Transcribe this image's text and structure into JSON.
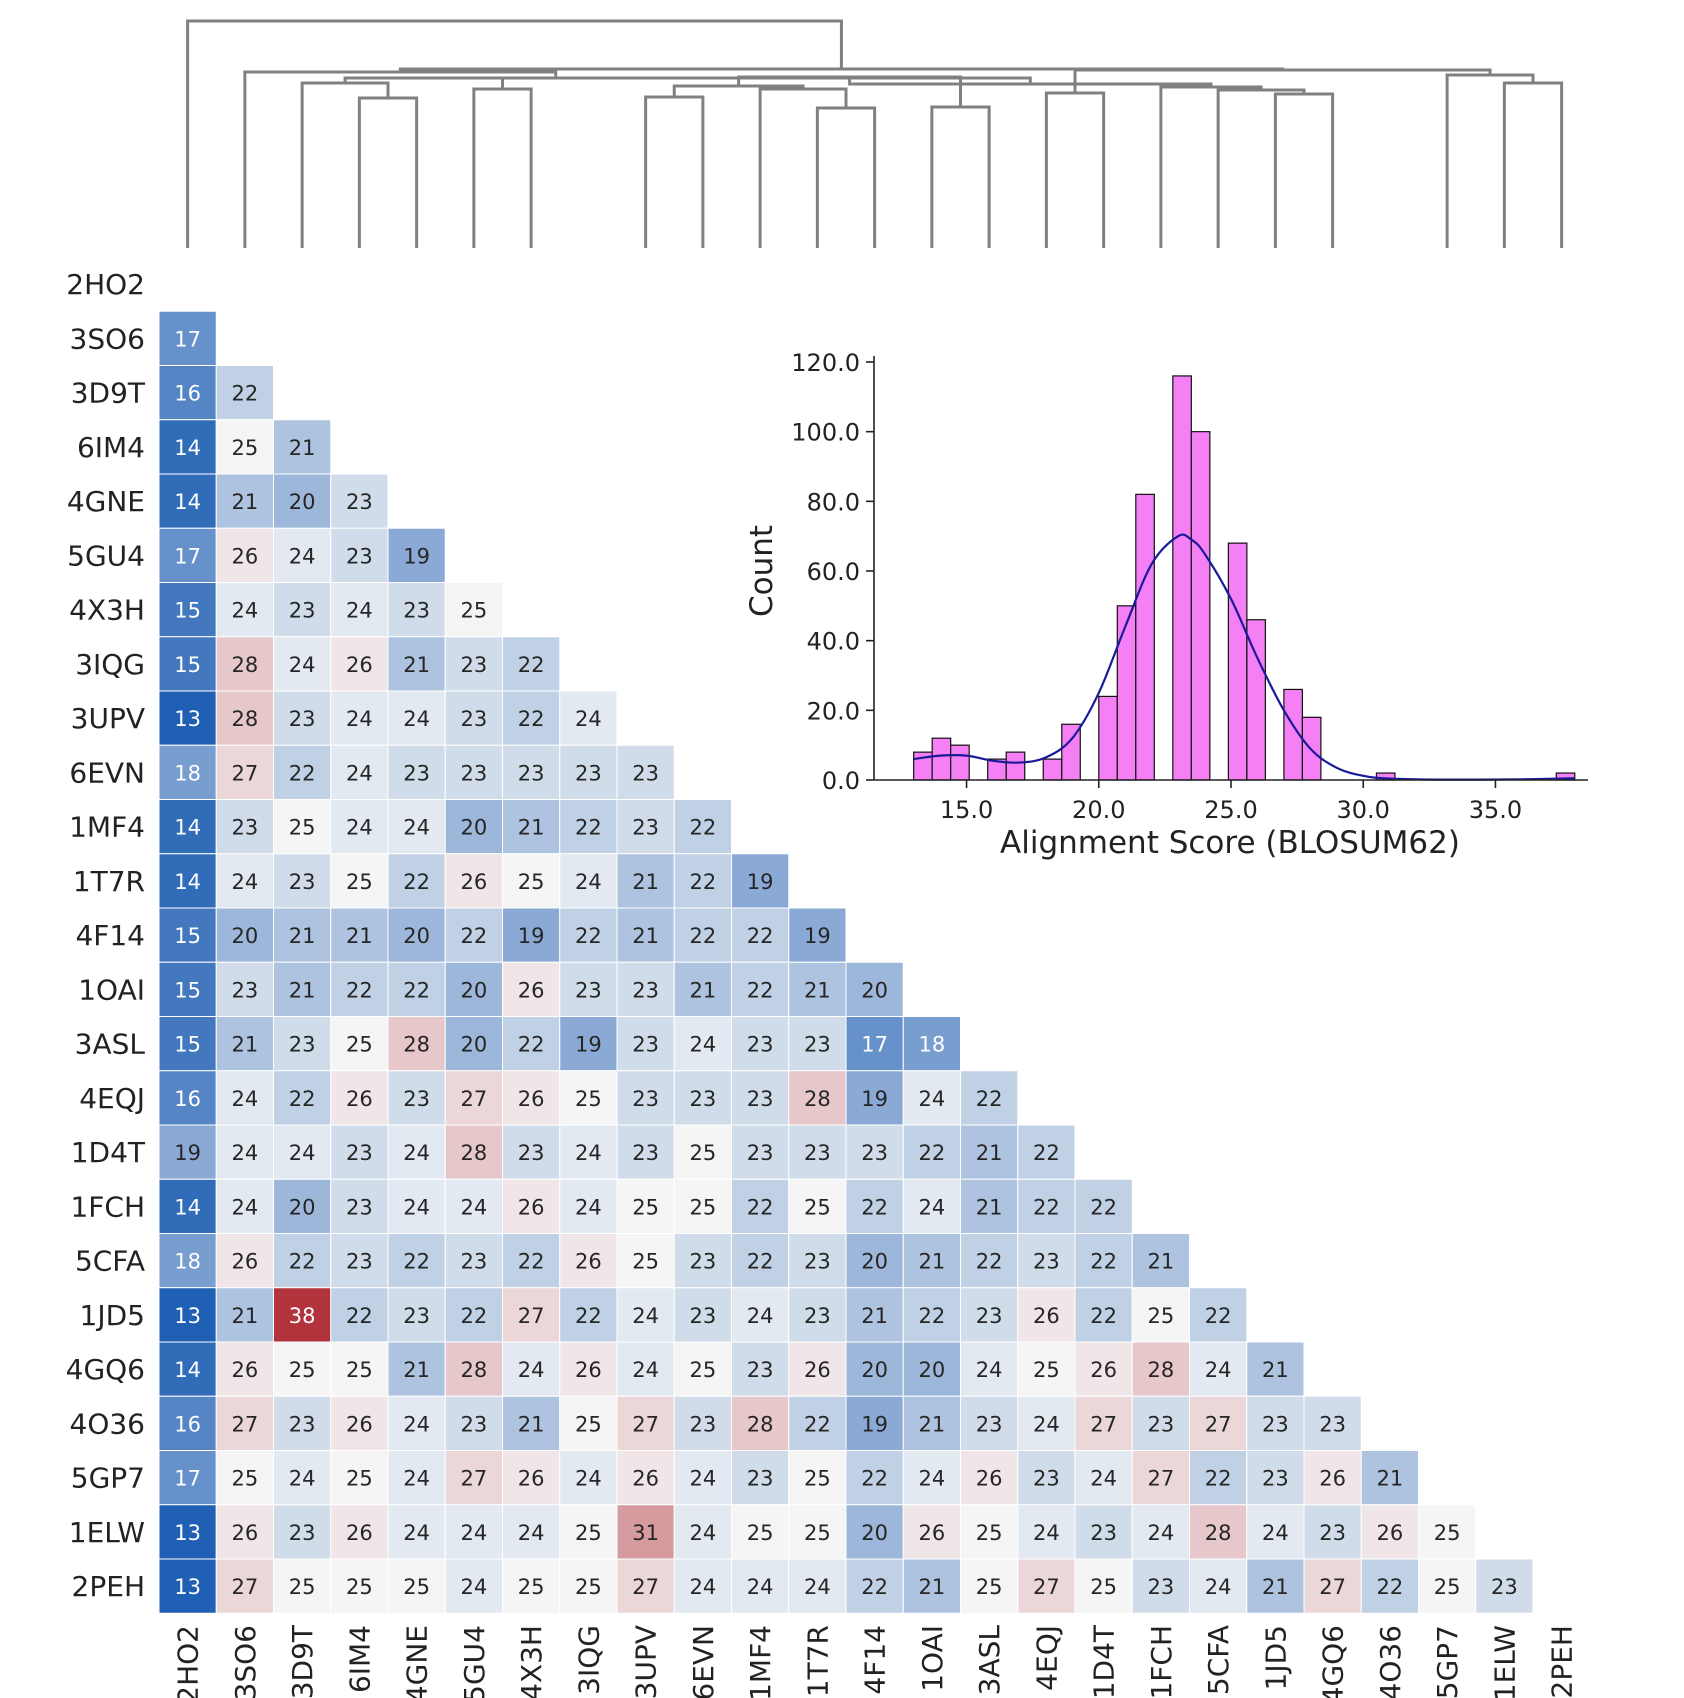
{
  "heatmap": {
    "labels": [
      "2HO2",
      "3SO6",
      "3D9T",
      "6IM4",
      "4GNE",
      "5GU4",
      "4X3H",
      "3IQG",
      "3UPV",
      "6EVN",
      "1MF4",
      "1T7R",
      "4F14",
      "1OAI",
      "3ASL",
      "4EQJ",
      "1D4T",
      "1FCH",
      "5CFA",
      "1JD5",
      "4GQ6",
      "4O36",
      "5GP7",
      "1ELW",
      "2PEH"
    ],
    "rows": [
      [],
      [
        17
      ],
      [
        16,
        22
      ],
      [
        14,
        25,
        21
      ],
      [
        14,
        21,
        20,
        23
      ],
      [
        17,
        26,
        24,
        23,
        19
      ],
      [
        15,
        24,
        23,
        24,
        23,
        25
      ],
      [
        15,
        28,
        24,
        26,
        21,
        23,
        22
      ],
      [
        13,
        28,
        23,
        24,
        24,
        23,
        22,
        24
      ],
      [
        18,
        27,
        22,
        24,
        23,
        23,
        23,
        23,
        23
      ],
      [
        14,
        23,
        25,
        24,
        24,
        20,
        21,
        22,
        23,
        22
      ],
      [
        14,
        24,
        23,
        25,
        22,
        26,
        25,
        24,
        21,
        22,
        19
      ],
      [
        15,
        20,
        21,
        21,
        20,
        22,
        19,
        22,
        21,
        22,
        22,
        19
      ],
      [
        15,
        23,
        21,
        22,
        22,
        20,
        26,
        23,
        23,
        21,
        22,
        21,
        20
      ],
      [
        15,
        21,
        23,
        25,
        28,
        20,
        22,
        19,
        23,
        24,
        23,
        23,
        17,
        18
      ],
      [
        16,
        24,
        22,
        26,
        23,
        27,
        26,
        25,
        23,
        23,
        23,
        28,
        19,
        24,
        22
      ],
      [
        19,
        24,
        24,
        23,
        24,
        28,
        23,
        24,
        23,
        25,
        23,
        23,
        23,
        22,
        21,
        22
      ],
      [
        14,
        24,
        20,
        23,
        24,
        24,
        26,
        24,
        25,
        25,
        22,
        25,
        22,
        24,
        21,
        22,
        22
      ],
      [
        18,
        26,
        22,
        23,
        22,
        23,
        22,
        26,
        25,
        23,
        22,
        23,
        20,
        21,
        22,
        23,
        22,
        21
      ],
      [
        13,
        21,
        38,
        22,
        23,
        22,
        27,
        22,
        24,
        23,
        24,
        23,
        21,
        22,
        23,
        26,
        22,
        25,
        22
      ],
      [
        14,
        26,
        25,
        25,
        21,
        28,
        24,
        26,
        24,
        25,
        23,
        26,
        20,
        20,
        24,
        25,
        26,
        28,
        24,
        21
      ],
      [
        16,
        27,
        23,
        26,
        24,
        23,
        21,
        25,
        27,
        23,
        28,
        22,
        19,
        21,
        23,
        24,
        27,
        23,
        27,
        23,
        23
      ],
      [
        17,
        25,
        24,
        25,
        24,
        27,
        26,
        24,
        26,
        24,
        23,
        25,
        22,
        24,
        26,
        23,
        24,
        27,
        22,
        23,
        26,
        21
      ],
      [
        13,
        26,
        23,
        26,
        24,
        24,
        24,
        25,
        31,
        24,
        25,
        25,
        20,
        26,
        25,
        24,
        23,
        24,
        28,
        24,
        23,
        26,
        25
      ],
      [
        13,
        27,
        25,
        25,
        25,
        24,
        25,
        25,
        27,
        24,
        24,
        24,
        22,
        21,
        25,
        27,
        25,
        23,
        24,
        21,
        27,
        22,
        25,
        23
      ]
    ]
  },
  "chart_data": {
    "type": "bar",
    "xlabel": "Alignment Score (BLOSUM62)",
    "ylabel": "Count",
    "xlim": [
      11.5,
      38.5
    ],
    "ylim": [
      0,
      120
    ],
    "xticks": [
      15.0,
      20.0,
      25.0,
      30.0,
      35.0
    ],
    "yticks": [
      0.0,
      20.0,
      40.0,
      60.0,
      80.0,
      100.0,
      120.0
    ],
    "bins": [
      {
        "x0": 13.0,
        "x1": 13.7,
        "count": 8
      },
      {
        "x0": 13.7,
        "x1": 14.4,
        "count": 12
      },
      {
        "x0": 14.4,
        "x1": 15.1,
        "count": 10
      },
      {
        "x0": 15.8,
        "x1": 16.5,
        "count": 6
      },
      {
        "x0": 16.5,
        "x1": 17.2,
        "count": 8
      },
      {
        "x0": 17.9,
        "x1": 18.6,
        "count": 6
      },
      {
        "x0": 18.6,
        "x1": 19.3,
        "count": 16
      },
      {
        "x0": 20.0,
        "x1": 20.7,
        "count": 24
      },
      {
        "x0": 20.7,
        "x1": 21.4,
        "count": 50
      },
      {
        "x0": 21.4,
        "x1": 22.1,
        "count": 82
      },
      {
        "x0": 22.8,
        "x1": 23.5,
        "count": 116
      },
      {
        "x0": 23.5,
        "x1": 24.2,
        "count": 100
      },
      {
        "x0": 24.9,
        "x1": 25.6,
        "count": 68
      },
      {
        "x0": 25.6,
        "x1": 26.3,
        "count": 46
      },
      {
        "x0": 27.0,
        "x1": 27.7,
        "count": 26
      },
      {
        "x0": 27.7,
        "x1": 28.4,
        "count": 18
      },
      {
        "x0": 30.5,
        "x1": 31.2,
        "count": 2
      },
      {
        "x0": 37.3,
        "x1": 38.0,
        "count": 2
      }
    ],
    "kde": [
      [
        13.0,
        6
      ],
      [
        14.0,
        7
      ],
      [
        15.0,
        7
      ],
      [
        16.0,
        5.5
      ],
      [
        17.0,
        5
      ],
      [
        18.0,
        6.5
      ],
      [
        19.0,
        12
      ],
      [
        20.0,
        25
      ],
      [
        21.0,
        44
      ],
      [
        22.0,
        62
      ],
      [
        23.0,
        70
      ],
      [
        23.5,
        69
      ],
      [
        24.0,
        65
      ],
      [
        25.0,
        52
      ],
      [
        26.0,
        35
      ],
      [
        27.0,
        20
      ],
      [
        28.0,
        9
      ],
      [
        29.0,
        3.5
      ],
      [
        30.0,
        1.2
      ],
      [
        31.0,
        0.4
      ],
      [
        33.0,
        0.1
      ],
      [
        36.0,
        0.2
      ],
      [
        38.0,
        0.5
      ]
    ],
    "bar_color": "#f57ff5",
    "kde_color": "#1a1a99"
  },
  "dendrogram_color": "#808080",
  "colors": {
    "low": "#1f5fb4",
    "mid": "#f5f5f5",
    "high": "#b2333b"
  }
}
